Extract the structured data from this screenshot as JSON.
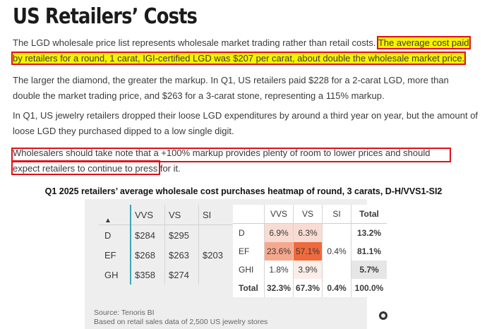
{
  "title": "US Retailers’ Costs",
  "p1": {
    "plain": "The LGD wholesale price list represents wholesale market trading rather than retail costs.",
    "highlight": "The average cost paid by retailers for a round, 1 carat, IGI-certified LGD was $207 per carat, about double the wholesale market price."
  },
  "p2": "The larger the diamond, the greater the markup. In Q1, US retailers paid $228 for a 2-carat LGD, more than double the market trading price, and $263 for a 3-carat stone, representing a 115% markup.",
  "p3": "In Q1, US jewelry retailers dropped their loose LGD expenditures by around a third year on year, but the amount of loose LGD they purchased dipped to a low single digit.",
  "p4": "Wholesalers should take note that a +100% markup provides plenty of room to lower prices and should expect retailers to continue to press for it.",
  "heatmap_title": "Q1 2025 retailers’ average wholesale cost purchases heatmap of round, 3 carats, D-H/VVS1-SI2",
  "cost_table": {
    "sort_icon": "triangle-up-icon",
    "sort_glyph": "▲",
    "columns": [
      "VVS",
      "VS",
      "SI"
    ],
    "rows": [
      {
        "label": "D",
        "cells": [
          "$284",
          "$295",
          ""
        ]
      },
      {
        "label": "EF",
        "cells": [
          "$268",
          "$263",
          "$203"
        ]
      },
      {
        "label": "GH",
        "cells": [
          "$358",
          "$274",
          ""
        ]
      }
    ]
  },
  "share_table": {
    "columns": [
      "VVS",
      "VS",
      "SI",
      "Total"
    ],
    "rows": [
      {
        "label": "D",
        "cells": [
          "6.9%",
          "6.3%",
          ""
        ],
        "total": "13.2%",
        "colors": [
          "#f8dcd3",
          "#f8dcd3",
          "#ffffff"
        ]
      },
      {
        "label": "EF",
        "cells": [
          "23.6%",
          "57.1%",
          "0.4%"
        ],
        "total": "81.1%",
        "colors": [
          "#f6a88f",
          "#ef6a3c",
          "#ffffff"
        ]
      },
      {
        "label": "GHI",
        "cells": [
          "1.8%",
          "3.9%",
          ""
        ],
        "total": "5.7%",
        "colors": [
          "#ffffff",
          "#fbeee9",
          "#ffffff"
        ]
      }
    ],
    "total_row": {
      "label": "Total",
      "cells": [
        "32.3%",
        "67.3%",
        "0.4%"
      ],
      "total": "100.0%"
    }
  },
  "source": "Source: Tenoris BI",
  "source_note": "Based on retail sales data of 2,500 US jewelry stores"
}
